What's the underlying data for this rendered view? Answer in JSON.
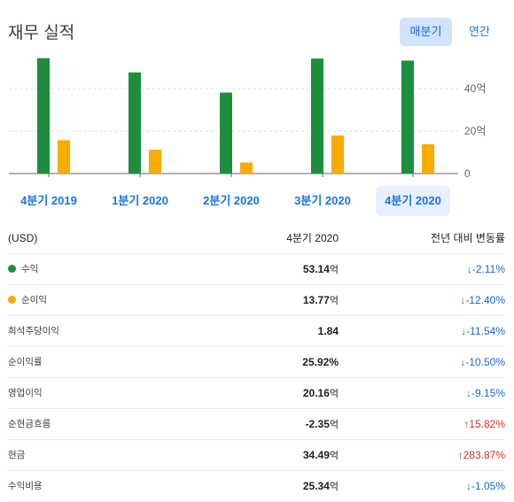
{
  "header": {
    "title": "재무 실적",
    "toggle_quarterly": "매분기",
    "toggle_annual": "연간"
  },
  "colors": {
    "revenue": "#1e8e3e",
    "net_income": "#f9ab00",
    "link": "#1a73e8"
  },
  "chart_data": {
    "type": "bar",
    "categories": [
      "4분기 2019",
      "1분기 2020",
      "2분기 2020",
      "3분기 2020",
      "4분기 2020"
    ],
    "series": [
      {
        "name": "수익",
        "values": [
          54.3,
          47.6,
          38.1,
          54.1,
          53.14
        ]
      },
      {
        "name": "순이익",
        "values": [
          15.7,
          11.2,
          5.2,
          17.9,
          13.77
        ]
      }
    ],
    "ylim": [
      0,
      60
    ],
    "yticks": [
      0,
      20,
      40
    ],
    "ytick_labels": [
      "0",
      "20억",
      "40억"
    ],
    "grid": true,
    "selected_index": 4
  },
  "table": {
    "header": {
      "label": "(USD)",
      "period": "4분기 2020",
      "change": "전년 대비 변동률"
    },
    "rows": [
      {
        "label": "수익",
        "value": "53.14",
        "unit": "억",
        "change": "↓-2.11%",
        "dir": "down",
        "dot": "#1e8e3e"
      },
      {
        "label": "순이익",
        "value": "13.77",
        "unit": "억",
        "change": "↓-12.40%",
        "dir": "down",
        "dot": "#f9ab00"
      },
      {
        "label": "희석주당이익",
        "value": "1.84",
        "unit": "",
        "change": "↓-11.54%",
        "dir": "down"
      },
      {
        "label": "순이익률",
        "value": "25.92%",
        "unit": "",
        "change": "↓-10.50%",
        "dir": "down"
      },
      {
        "label": "영업이익",
        "value": "20.16",
        "unit": "억",
        "change": "↓-9.15%",
        "dir": "down"
      },
      {
        "label": "순현금흐름",
        "value": "-2.35",
        "unit": "억",
        "change": "↑15.82%",
        "dir": "up"
      },
      {
        "label": "현금",
        "value": "34.49",
        "unit": "억",
        "change": "↑283.87%",
        "dir": "up"
      },
      {
        "label": "수익비용",
        "value": "25.34",
        "unit": "억",
        "change": "↓-1.05%",
        "dir": "down"
      }
    ]
  }
}
